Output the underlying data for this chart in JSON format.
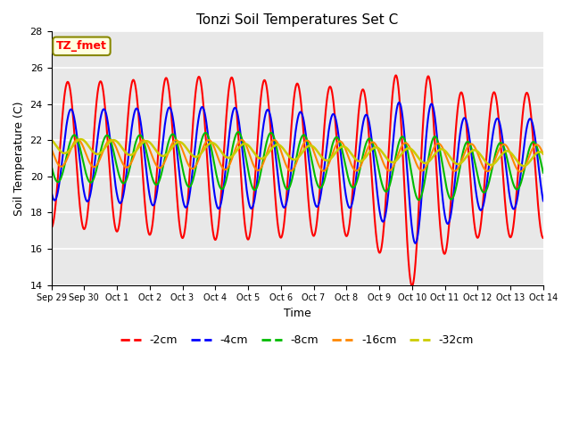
{
  "title": "Tonzi Soil Temperatures Set C",
  "xlabel": "Time",
  "ylabel": "Soil Temperature (C)",
  "ylim": [
    14,
    28
  ],
  "xlim": [
    0,
    15
  ],
  "xtick_labels": [
    "Sep 29",
    "Sep 30",
    "Oct 1",
    "Oct 2",
    "Oct 3",
    "Oct 4",
    "Oct 5",
    "Oct 6",
    "Oct 7",
    "Oct 8",
    "Oct 9",
    "Oct 10",
    "Oct 11",
    "Oct 12",
    "Oct 13",
    "Oct 14"
  ],
  "annotation": "TZ_fmet",
  "legend_labels": [
    "-2cm",
    "-4cm",
    "-8cm",
    "-16cm",
    "-32cm"
  ],
  "legend_colors": [
    "#ff0000",
    "#0000ff",
    "#00bb00",
    "#ff8800",
    "#cccc00"
  ],
  "bg_color": "#e8e8e8",
  "line_widths": [
    1.5,
    1.5,
    1.5,
    1.5,
    1.8
  ],
  "title_fontsize": 11,
  "axis_label_fontsize": 9,
  "tick_fontsize": 8,
  "annotation_fontsize": 9,
  "legend_fontsize": 9
}
